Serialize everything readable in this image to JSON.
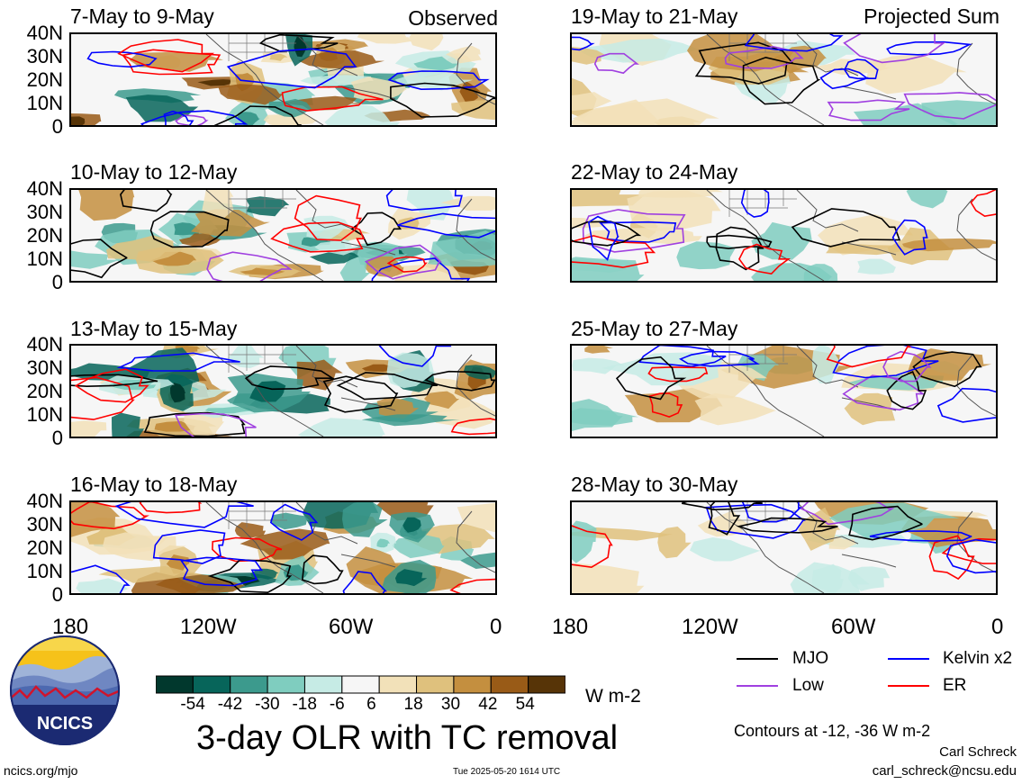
{
  "panels": [
    {
      "title": "7-May to 9-May",
      "tag": "Observed",
      "seed": 11
    },
    {
      "title": "10-May to 12-May",
      "tag": "",
      "seed": 23
    },
    {
      "title": "13-May to 15-May",
      "tag": "",
      "seed": 37
    },
    {
      "title": "16-May to 18-May",
      "tag": "",
      "seed": 41
    },
    {
      "title": "19-May to 21-May",
      "tag": "Projected Sum",
      "seed": 53
    },
    {
      "title": "22-May to 24-May",
      "tag": "",
      "seed": 67
    },
    {
      "title": "25-May to 27-May",
      "tag": "",
      "seed": 71
    },
    {
      "title": "28-May to 30-May",
      "tag": "",
      "seed": 89
    }
  ],
  "lat_labels": [
    "40N",
    "30N",
    "20N",
    "10N",
    "0"
  ],
  "lon_labels": [
    "180",
    "120W",
    "60W",
    "0"
  ],
  "colorbar": {
    "ticks": [
      "-54",
      "-42",
      "-30",
      "-18",
      "-6",
      "6",
      "18",
      "30",
      "42",
      "54"
    ],
    "colors": [
      "#01382d",
      "#07655a",
      "#3c9a8d",
      "#7fcdbf",
      "#c6ebe5",
      "#f6f6f6",
      "#f2e1b9",
      "#dfc17d",
      "#c48f3f",
      "#995b17",
      "#573407"
    ],
    "units": "W m-2"
  },
  "title": "3-day OLR with TC removal",
  "legend": [
    {
      "label": "MJO",
      "color": "#000000"
    },
    {
      "label": "Kelvin x2",
      "color": "#0000ff"
    },
    {
      "label": "Low",
      "color": "#a040e0"
    },
    {
      "label": "ER",
      "color": "#ff0000"
    }
  ],
  "contour_note": "Contours at -12, -36 W m-2",
  "author": "Carl Schreck",
  "email": "carl_schreck@ncsu.edu",
  "site": "ncics.org/mjo",
  "timestamp": "Tue 2025-05-20 1614 UTC",
  "logo_text": "NCICS"
}
